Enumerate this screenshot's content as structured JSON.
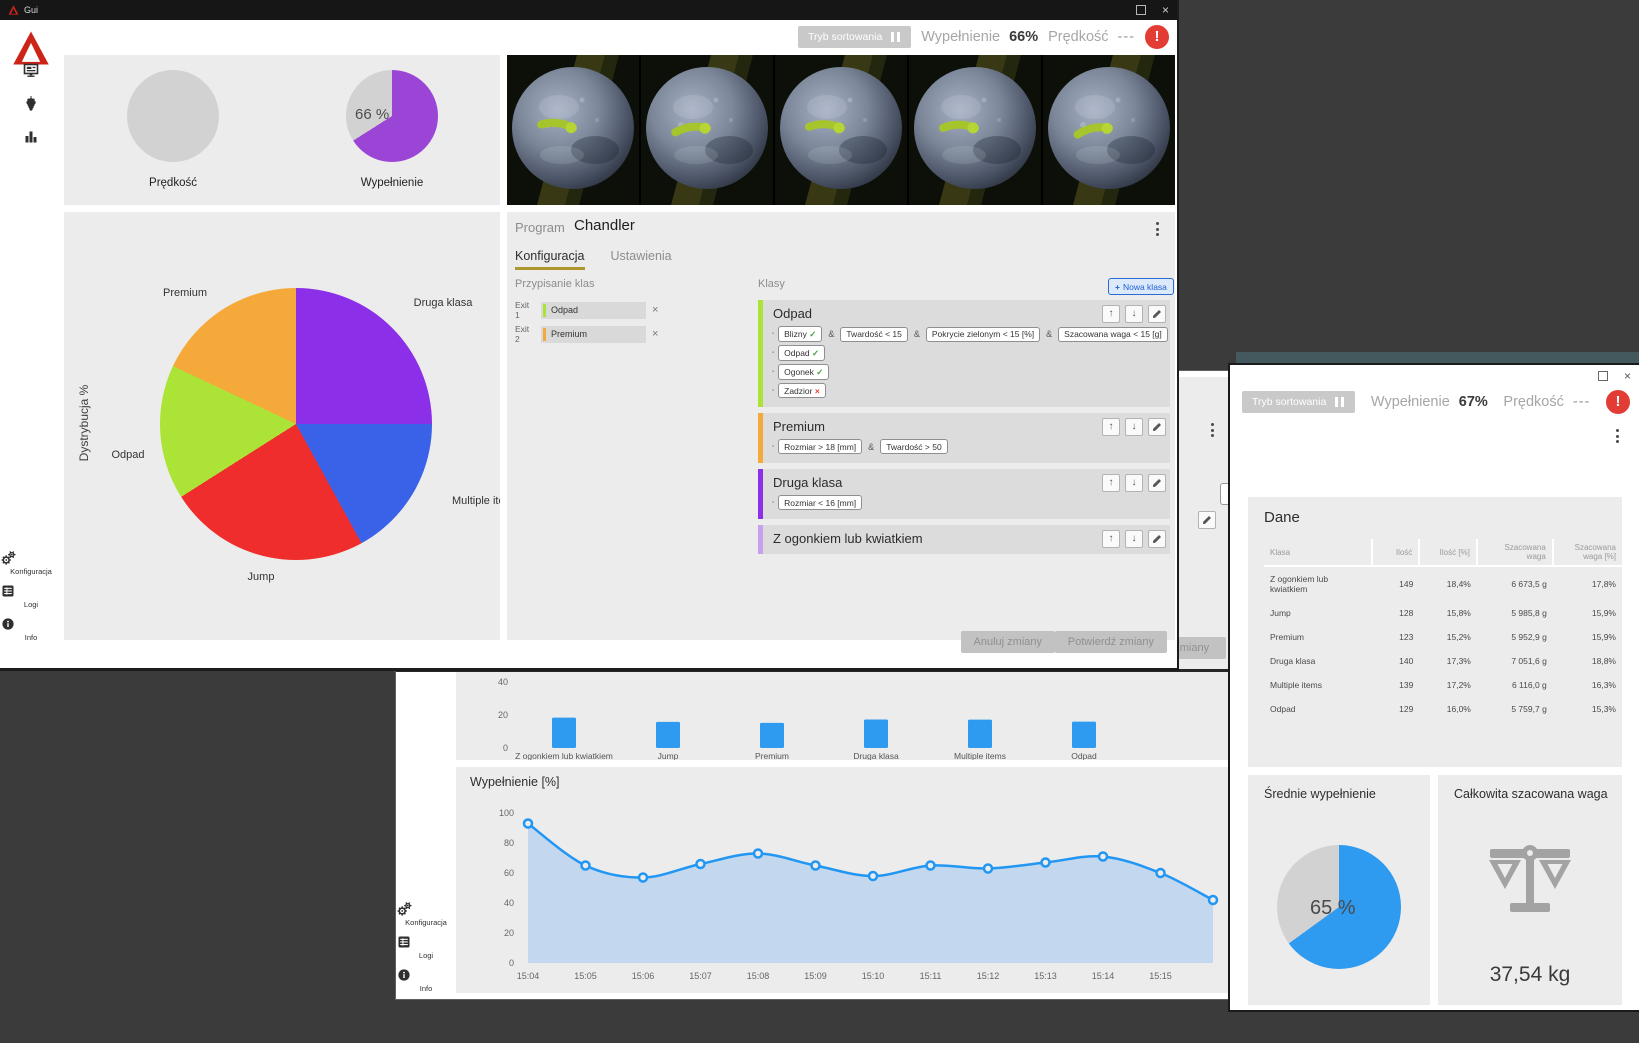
{
  "window1": {
    "title": "Gui",
    "toolbar": {
      "sorting": "Tryb sortowania",
      "fill_label": "Wypełnienie",
      "fill_value": "66%",
      "speed_label": "Prędkość",
      "speed_value": "---",
      "alert": "!"
    },
    "sidebar": {
      "bottom": [
        {
          "label": "Konfiguracja"
        },
        {
          "label": "Logi"
        },
        {
          "label": "Info"
        }
      ]
    },
    "program": {
      "label": "Program",
      "name": "Chandler",
      "tabs": [
        "Konfiguracja",
        "Ustawienia"
      ],
      "assignment_title": "Przypisanie klas",
      "exits": [
        {
          "label": "Exit 1",
          "value": "Odpad",
          "color": "#abe436"
        },
        {
          "label": "Exit 2",
          "value": "Premium",
          "color": "#f5a93a"
        }
      ],
      "classes_title": "Klasy",
      "new_class": "Nowa klasa",
      "classes": [
        {
          "name": "Odpad",
          "color": "#abe436",
          "rows": [
            [
              {
                "text": "Blizny",
                "mark": "ok"
              },
              {
                "text": "Twardość < 15"
              },
              {
                "text": "Pokrycie zielonym < 15 [%]"
              },
              {
                "text": "Szacowana waga < 15 [g]"
              }
            ],
            [
              {
                "text": "Odpad",
                "mark": "ok"
              }
            ],
            [
              {
                "text": "Ogonek",
                "mark": "ok"
              }
            ],
            [
              {
                "text": "Zadzior",
                "mark": "no"
              }
            ]
          ]
        },
        {
          "name": "Premium",
          "color": "#f5a93a",
          "rows": [
            [
              {
                "text": "Rozmiar > 18 [mm]"
              },
              {
                "text": "Twardość > 50"
              }
            ]
          ]
        },
        {
          "name": "Druga klasa",
          "color": "#8b30e8",
          "rows": [
            [
              {
                "text": "Rozmiar < 16 [mm]"
              }
            ]
          ]
        },
        {
          "name": "Z ogonkiem lub kwiatkiem",
          "color": "#c9a0f0",
          "rows": []
        }
      ],
      "cancel": "Anuluj zmiany",
      "confirm": "Potwierdź zmiany"
    }
  },
  "window2": {
    "partial_confirm": "Potwierdź zmiany",
    "sidebar": {
      "bottom": [
        {
          "label": "Konfiguracja"
        },
        {
          "label": "Logi"
        },
        {
          "label": "Info"
        }
      ]
    }
  },
  "window3": {
    "toolbar": {
      "sorting": "Tryb sortowania",
      "fill_label": "Wypełnienie",
      "fill_value": "67%",
      "speed_label": "Prędkość",
      "speed_value": "---",
      "alert": "!"
    },
    "dane": {
      "title": "Dane",
      "headers": [
        "Klasa",
        "Ilość",
        "Ilość [%]",
        "Szacowana waga",
        "Szacowana waga [%]"
      ],
      "rows": [
        [
          "Z ogonkiem lub kwiatkiem",
          "149",
          "18,4%",
          "6 673,5 g",
          "17,8%"
        ],
        [
          "Jump",
          "128",
          "15,8%",
          "5 985,8 g",
          "15,9%"
        ],
        [
          "Premium",
          "123",
          "15,2%",
          "5 952,9 g",
          "15,9%"
        ],
        [
          "Druga klasa",
          "140",
          "17,3%",
          "7 051,6 g",
          "18,8%"
        ],
        [
          "Multiple items",
          "139",
          "17,2%",
          "6 116,0 g",
          "16,3%"
        ],
        [
          "Odpad",
          "129",
          "16,0%",
          "5 759,7 g",
          "15,3%"
        ]
      ]
    },
    "total_weight": {
      "title": "Całkowita szacowana waga",
      "value": "37,54 kg"
    }
  },
  "chart_data": [
    {
      "id": "w1-speed-gauge",
      "type": "pie",
      "title": "Prędkość",
      "slices": [
        {
          "label": "brak danych",
          "value": 100,
          "color": "#d2d2d2"
        }
      ]
    },
    {
      "id": "w1-fill-gauge",
      "type": "pie",
      "title": "Wypełnienie",
      "center_text": "66 %",
      "slices": [
        {
          "label": "wypełnienie",
          "value": 66,
          "color": "#9a45d6"
        },
        {
          "label": "reszta",
          "value": 34,
          "color": "#d2d2d2"
        }
      ]
    },
    {
      "id": "w1-distribution",
      "type": "pie",
      "ylabel": "Dystrybucja %",
      "slices": [
        {
          "label": "Druga klasa",
          "value": 25,
          "color": "#8b30e8"
        },
        {
          "label": "Multiple items",
          "value": 17,
          "color": "#3a62e8"
        },
        {
          "label": "Jump",
          "value": 24,
          "color": "#f02d2d"
        },
        {
          "label": "Odpad",
          "value": 16,
          "color": "#abe436"
        },
        {
          "label": "Premium",
          "value": 18,
          "color": "#f5a93a"
        }
      ]
    },
    {
      "id": "w2-class-bars",
      "type": "bar",
      "categories": [
        "Z ogonkiem lub kwiatkiem",
        "Jump",
        "Premium",
        "Druga klasa",
        "Multiple items",
        "Odpad"
      ],
      "values": [
        18.4,
        15.8,
        15.2,
        17.3,
        17.2,
        16.0
      ],
      "color": "#2e9af0",
      "yticks": [
        0,
        20,
        40
      ],
      "ylim": [
        0,
        45
      ]
    },
    {
      "id": "w2-fill-line",
      "type": "area",
      "title": "Wypełnienie [%]",
      "x": [
        "15:04",
        "15:05",
        "15:06",
        "15:07",
        "15:08",
        "15:09",
        "15:10",
        "15:11",
        "15:12",
        "15:13",
        "15:14",
        "15:15"
      ],
      "values": [
        93,
        65,
        57,
        66,
        73,
        65,
        58,
        65,
        63,
        67,
        71,
        60
      ],
      "trailing_value": 42,
      "yticks": [
        0,
        20,
        40,
        60,
        80,
        100
      ],
      "ylim": [
        0,
        100
      ],
      "line_color": "#2196f3",
      "fill_color": "#c3d8ee"
    },
    {
      "id": "w3-avg-fill",
      "type": "pie",
      "title": "Średnie wypełnienie",
      "center_text": "65 %",
      "slices": [
        {
          "label": "wypełnienie",
          "value": 65,
          "color": "#2e9af0"
        },
        {
          "label": "reszta",
          "value": 35,
          "color": "#d2d2d2"
        }
      ]
    }
  ]
}
